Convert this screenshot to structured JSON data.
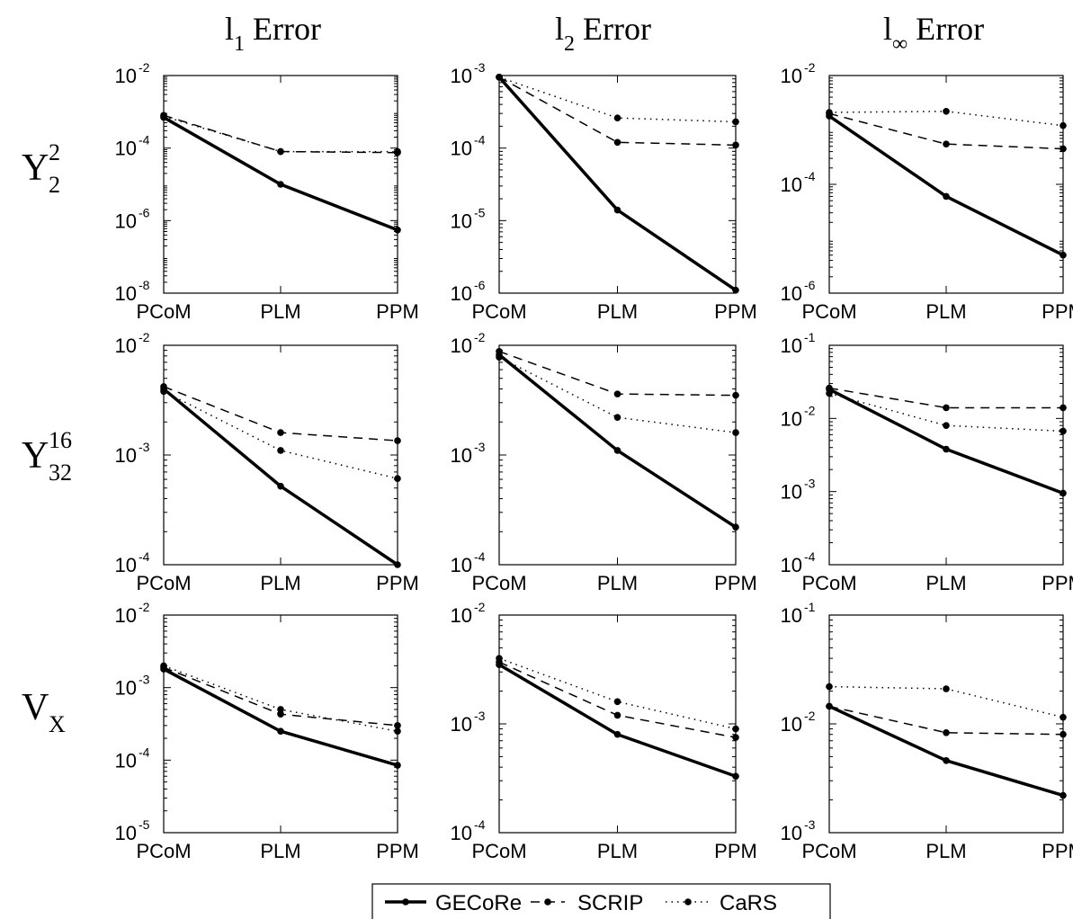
{
  "columns": [
    {
      "main": "l",
      "sub": "1",
      "text": "Error"
    },
    {
      "main": "l",
      "sub": "2",
      "text": "Error"
    },
    {
      "main": "l",
      "sub": "∞",
      "text": "Error"
    }
  ],
  "rows": [
    {
      "main": "Y",
      "sup": "2",
      "sub": "2"
    },
    {
      "main": "Y",
      "sup": "16",
      "sub": "32"
    },
    {
      "main": "V",
      "sup": "",
      "sub": "X"
    }
  ],
  "legend": {
    "placement": "bottom-center",
    "entries": [
      {
        "name": "GECoRe",
        "style": "solid"
      },
      {
        "name": "SCRIP",
        "style": "dashed"
      },
      {
        "name": "CaRS",
        "style": "dotted"
      }
    ]
  },
  "chart_data": [
    {
      "type": "line",
      "row": 0,
      "col": 0,
      "categories": [
        "PCoM",
        "PLM",
        "PPM"
      ],
      "yscale": "log",
      "ylim": [
        1e-08,
        0.01
      ],
      "yticks": [
        "10^-8",
        "10^-6",
        "10^-4",
        "10^-2"
      ],
      "series": [
        {
          "name": "GECoRe",
          "values": [
            0.0007,
            1e-05,
            5.5e-07
          ]
        },
        {
          "name": "SCRIP",
          "values": [
            0.0008,
            8e-05,
            7.5e-05
          ]
        },
        {
          "name": "CaRS",
          "values": [
            0.00075,
            8e-05,
            8e-05
          ]
        }
      ]
    },
    {
      "type": "line",
      "row": 0,
      "col": 1,
      "categories": [
        "PCoM",
        "PLM",
        "PPM"
      ],
      "yscale": "log",
      "ylim": [
        1e-06,
        0.001
      ],
      "yticks": [
        "10^-6",
        "10^-5",
        "10^-4",
        "10^-3"
      ],
      "series": [
        {
          "name": "GECoRe",
          "values": [
            0.00095,
            1.4e-05,
            1.1e-06
          ]
        },
        {
          "name": "SCRIP",
          "values": [
            0.00095,
            0.00012,
            0.00011
          ]
        },
        {
          "name": "CaRS",
          "values": [
            0.00095,
            0.00026,
            0.00023
          ]
        }
      ]
    },
    {
      "type": "line",
      "row": 0,
      "col": 2,
      "categories": [
        "PCoM",
        "PLM",
        "PPM"
      ],
      "yscale": "log",
      "ylim": [
        1e-06,
        0.01
      ],
      "yticks": [
        "10^-6",
        "10^-4",
        "10^-2"
      ],
      "series": [
        {
          "name": "GECoRe",
          "values": [
            0.0018,
            6e-05,
            5e-06
          ]
        },
        {
          "name": "SCRIP",
          "values": [
            0.002,
            0.00055,
            0.00045
          ]
        },
        {
          "name": "CaRS",
          "values": [
            0.0021,
            0.0022,
            0.0012
          ]
        }
      ]
    },
    {
      "type": "line",
      "row": 1,
      "col": 0,
      "categories": [
        "PCoM",
        "PLM",
        "PPM"
      ],
      "yscale": "log",
      "ylim": [
        0.0001,
        0.01
      ],
      "yticks": [
        "10^-4",
        "10^-3",
        "10^-2"
      ],
      "series": [
        {
          "name": "GECoRe",
          "values": [
            0.004,
            0.00052,
            0.0001
          ]
        },
        {
          "name": "SCRIP",
          "values": [
            0.0042,
            0.0016,
            0.00135
          ]
        },
        {
          "name": "CaRS",
          "values": [
            0.0038,
            0.0011,
            0.00061
          ]
        }
      ]
    },
    {
      "type": "line",
      "row": 1,
      "col": 1,
      "categories": [
        "PCoM",
        "PLM",
        "PPM"
      ],
      "yscale": "log",
      "ylim": [
        0.0001,
        0.01
      ],
      "yticks": [
        "10^-4",
        "10^-3",
        "10^-2"
      ],
      "series": [
        {
          "name": "GECoRe",
          "values": [
            0.0082,
            0.0011,
            0.00022
          ]
        },
        {
          "name": "SCRIP",
          "values": [
            0.0088,
            0.0036,
            0.0035
          ]
        },
        {
          "name": "CaRS",
          "values": [
            0.0078,
            0.0022,
            0.0016
          ]
        }
      ]
    },
    {
      "type": "line",
      "row": 1,
      "col": 2,
      "categories": [
        "PCoM",
        "PLM",
        "PPM"
      ],
      "yscale": "log",
      "ylim": [
        0.0001,
        0.1
      ],
      "yticks": [
        "10^-4",
        "10^-3",
        "10^-2",
        "10^-1"
      ],
      "series": [
        {
          "name": "GECoRe",
          "values": [
            0.025,
            0.0038,
            0.00095
          ]
        },
        {
          "name": "SCRIP",
          "values": [
            0.026,
            0.014,
            0.014
          ]
        },
        {
          "name": "CaRS",
          "values": [
            0.022,
            0.008,
            0.0067
          ]
        }
      ]
    },
    {
      "type": "line",
      "row": 2,
      "col": 0,
      "categories": [
        "PCoM",
        "PLM",
        "PPM"
      ],
      "yscale": "log",
      "ylim": [
        1e-05,
        0.01
      ],
      "yticks": [
        "10^-5",
        "10^-4",
        "10^-3",
        "10^-2"
      ],
      "series": [
        {
          "name": "GECoRe",
          "values": [
            0.0018,
            0.00025,
            8.5e-05
          ]
        },
        {
          "name": "SCRIP",
          "values": [
            0.0019,
            0.00043,
            0.0003
          ]
        },
        {
          "name": "CaRS",
          "values": [
            0.002,
            0.0005,
            0.00025
          ]
        }
      ]
    },
    {
      "type": "line",
      "row": 2,
      "col": 1,
      "categories": [
        "PCoM",
        "PLM",
        "PPM"
      ],
      "yscale": "log",
      "ylim": [
        0.0001,
        0.01
      ],
      "yticks": [
        "10^-4",
        "10^-3",
        "10^-2"
      ],
      "series": [
        {
          "name": "GECoRe",
          "values": [
            0.0035,
            0.0008,
            0.00033
          ]
        },
        {
          "name": "SCRIP",
          "values": [
            0.0037,
            0.0012,
            0.00075
          ]
        },
        {
          "name": "CaRS",
          "values": [
            0.004,
            0.0016,
            0.0009
          ]
        }
      ]
    },
    {
      "type": "line",
      "row": 2,
      "col": 2,
      "categories": [
        "PCoM",
        "PLM",
        "PPM"
      ],
      "yscale": "log",
      "ylim": [
        0.001,
        0.1
      ],
      "yticks": [
        "10^-3",
        "10^-2",
        "10^-1"
      ],
      "series": [
        {
          "name": "GECoRe",
          "values": [
            0.0145,
            0.0046,
            0.0022
          ]
        },
        {
          "name": "SCRIP",
          "values": [
            0.0145,
            0.0083,
            0.008
          ]
        },
        {
          "name": "CaRS",
          "values": [
            0.022,
            0.021,
            0.0115
          ]
        }
      ]
    }
  ]
}
